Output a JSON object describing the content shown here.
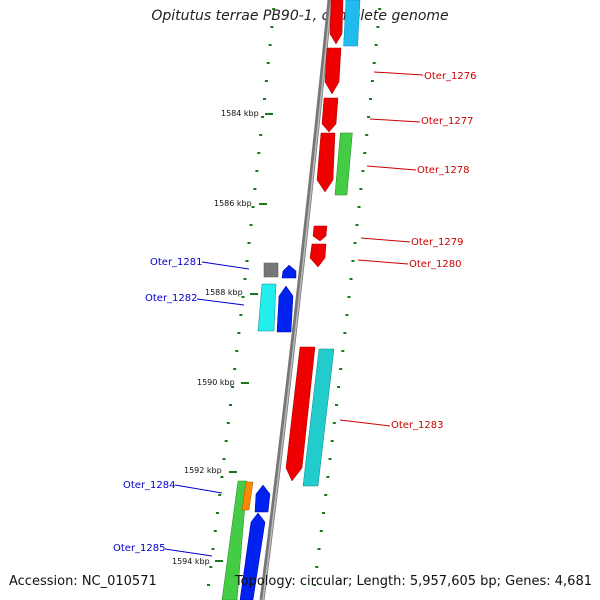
{
  "title": "Opitutus terrae PB90-1, complete genome",
  "accession": "Accession: NC_010571",
  "footer": "Topology: circular; Length: 5,957,605 bp; Genes: 4,681",
  "scale": {
    "unit": "kbp",
    "labels": [
      "1584 kbp",
      "1586 kbp",
      "1588 kbp",
      "1590 kbp",
      "1592 kbp",
      "1594 kbp"
    ]
  },
  "colors": {
    "forward_label": "#cc0000",
    "reverse_label": "#0000cc",
    "backbone": "#888888",
    "tick": "#1a7a1a"
  },
  "genes": [
    {
      "name": "Oter_1276",
      "strand": "forward"
    },
    {
      "name": "Oter_1277",
      "strand": "forward"
    },
    {
      "name": "Oter_1278",
      "strand": "forward"
    },
    {
      "name": "Oter_1279",
      "strand": "forward"
    },
    {
      "name": "Oter_1280",
      "strand": "forward"
    },
    {
      "name": "Oter_1281",
      "strand": "reverse"
    },
    {
      "name": "Oter_1282",
      "strand": "reverse"
    },
    {
      "name": "Oter_1283",
      "strand": "forward"
    },
    {
      "name": "Oter_1284",
      "strand": "reverse"
    },
    {
      "name": "Oter_1285",
      "strand": "reverse"
    }
  ]
}
